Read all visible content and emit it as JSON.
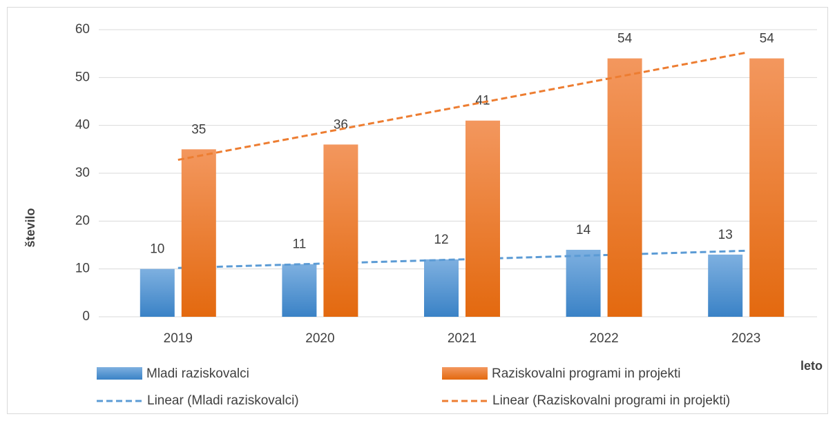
{
  "chart_data": {
    "type": "bar",
    "x_label": "leto",
    "y_label": "število",
    "categories": [
      "2019",
      "2020",
      "2021",
      "2022",
      "2023"
    ],
    "series": [
      {
        "name": "Mladi raziskovalci",
        "color": "#5b9bd5",
        "values": [
          10,
          11,
          12,
          14,
          13
        ],
        "trendline": "Linear (Mladi raziskovalci)"
      },
      {
        "name": "Raziskovalni programi in projekti",
        "color": "#ed7d31",
        "values": [
          35,
          36,
          41,
          54,
          54
        ],
        "trendline": "Linear (Raziskovalni programi in projekti)"
      }
    ],
    "ylim": [
      0,
      60
    ],
    "yticks": [
      0,
      10,
      20,
      30,
      40,
      50,
      60
    ],
    "grid": true
  }
}
